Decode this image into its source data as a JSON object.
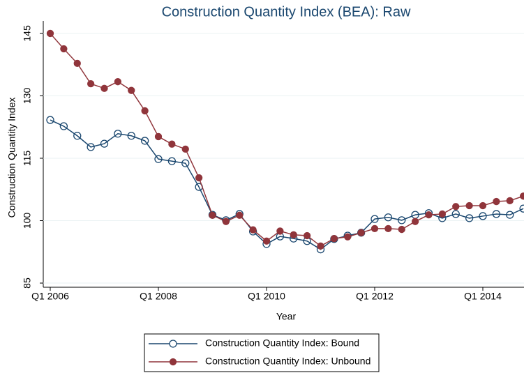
{
  "chart_data": {
    "type": "line",
    "title": "Construction Quantity Index (BEA): Raw",
    "x_label": "Year",
    "y_label": "Construction Quantity Index",
    "categories": [
      "Q1 2006",
      null,
      null,
      null,
      null,
      null,
      null,
      null,
      "Q1 2008",
      null,
      null,
      null,
      null,
      null,
      null,
      null,
      "Q1 2010",
      null,
      null,
      null,
      null,
      null,
      null,
      null,
      "Q1 2012",
      null,
      null,
      null,
      null,
      null,
      null,
      null,
      "Q1 2014",
      null,
      null,
      null
    ],
    "ylim": [
      84,
      147
    ],
    "yticks": [
      85,
      100,
      115,
      130,
      145
    ],
    "grid": true,
    "series": [
      {
        "name": "Construction Quantity Index: Bound",
        "color": "#1a476f",
        "marker": "hollow",
        "values": [
          124.2,
          122.7,
          120.4,
          117.7,
          118.5,
          120.9,
          120.4,
          119.2,
          114.8,
          114.3,
          113.8,
          108.1,
          101.4,
          100.1,
          101.6,
          97.4,
          94.4,
          96.2,
          95.7,
          95.1,
          93.1,
          95.6,
          96.4,
          97.1,
          100.4,
          100.8,
          100.1,
          101.4,
          101.8,
          100.6,
          101.6,
          100.6,
          101.1,
          101.6,
          101.4,
          102.9
        ]
      },
      {
        "name": "Construction Quantity Index: Unbound",
        "color": "#90353b",
        "marker": "filled",
        "values": [
          145,
          141.3,
          137.8,
          132.9,
          131.8,
          133.4,
          131.3,
          126.4,
          120.2,
          118.4,
          117.2,
          110.3,
          101.3,
          99.8,
          101.3,
          97.8,
          95.1,
          97.5,
          96.6,
          96.4,
          93.9,
          95.7,
          96.1,
          97.1,
          98.1,
          98.1,
          97.9,
          99.8,
          101.4,
          101.6,
          103.4,
          103.6,
          103.6,
          104.6,
          104.8,
          105.9
        ]
      }
    ]
  }
}
